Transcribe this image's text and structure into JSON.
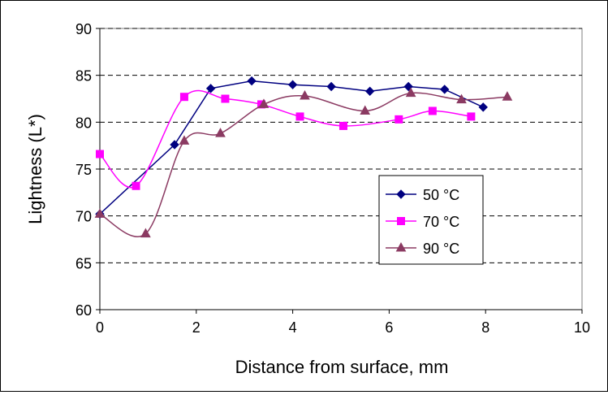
{
  "chart_data": {
    "type": "line",
    "title": "",
    "xlabel": "Distance from surface, mm",
    "ylabel": "Lightness (L*)",
    "xlim": [
      0,
      10
    ],
    "ylim": [
      60,
      90
    ],
    "xticks": [
      "0",
      "2",
      "4",
      "6",
      "8",
      "10"
    ],
    "yticks": [
      "60",
      "65",
      "70",
      "75",
      "80",
      "85",
      "90"
    ],
    "grid": "horizontal dashed",
    "legend_position": "right",
    "series": [
      {
        "name": "50 °C",
        "color": "#000080",
        "marker": "diamond",
        "smooth": false,
        "x": [
          0,
          1.55,
          2.3,
          3.15,
          4.0,
          4.8,
          5.6,
          6.4,
          7.15,
          7.95
        ],
        "y": [
          70.2,
          77.6,
          83.6,
          84.4,
          84.0,
          83.8,
          83.3,
          83.8,
          83.5,
          81.6
        ]
      },
      {
        "name": "70 °C",
        "color": "#ff00ff",
        "marker": "square",
        "smooth": true,
        "x": [
          0,
          0.75,
          1.75,
          2.6,
          3.35,
          4.15,
          5.05,
          6.2,
          6.9,
          7.7
        ],
        "y": [
          76.6,
          73.2,
          82.7,
          82.5,
          81.9,
          80.6,
          79.6,
          80.3,
          81.2,
          80.6
        ]
      },
      {
        "name": "90 °C",
        "color": "#8b3a62",
        "marker": "triangle",
        "smooth": true,
        "x": [
          0,
          0.95,
          1.75,
          2.5,
          3.4,
          4.25,
          5.5,
          6.45,
          7.5,
          8.45
        ],
        "y": [
          70.2,
          68.1,
          78.0,
          78.8,
          81.9,
          82.8,
          81.2,
          83.1,
          82.4,
          82.7
        ]
      }
    ]
  }
}
